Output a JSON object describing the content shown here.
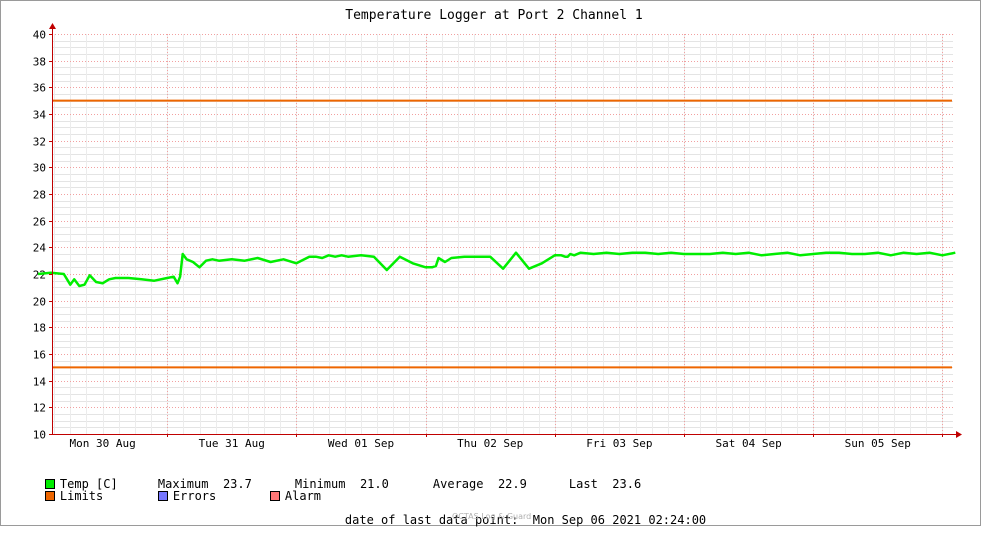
{
  "chart_data": {
    "type": "line",
    "title": "Temperature Logger at Port 2 Channel 1",
    "ylim": [
      10,
      40
    ],
    "yticks": [
      10,
      12,
      14,
      16,
      18,
      20,
      22,
      24,
      26,
      28,
      30,
      32,
      34,
      36,
      38,
      40
    ],
    "grid": true,
    "x_day_labels": [
      "Mon 30 Aug",
      "Tue 31 Aug",
      "Wed 01 Sep",
      "Thu 02 Sep",
      "Fri 03 Sep",
      "Sat 04 Sep",
      "Sun 05 Sep"
    ],
    "series": [
      {
        "name": "Temp [C]",
        "color": "#00ee00",
        "x_day_offset": [
          0,
          0.1,
          0.2,
          0.25,
          0.28,
          0.32,
          0.36,
          0.4,
          0.45,
          0.5,
          0.55,
          0.6,
          0.7,
          0.8,
          0.9,
          1.0,
          1.05,
          1.08,
          1.1,
          1.12,
          1.15,
          1.2,
          1.25,
          1.3,
          1.35,
          1.4,
          1.5,
          1.6,
          1.7,
          1.8,
          1.9,
          2.0,
          2.1,
          2.15,
          2.2,
          2.25,
          2.3,
          2.35,
          2.4,
          2.5,
          2.6,
          2.7,
          2.8,
          2.9,
          3.0,
          3.05,
          3.08,
          3.1,
          3.15,
          3.2,
          3.3,
          3.35,
          3.4,
          3.5,
          3.6,
          3.7,
          3.8,
          3.9,
          4.0,
          4.05,
          4.08,
          4.1,
          4.12,
          4.15,
          4.2,
          4.3,
          4.4,
          4.5,
          4.6,
          4.7,
          4.8,
          4.9,
          5.0,
          5.1,
          5.2,
          5.3,
          5.4,
          5.5,
          5.6,
          5.7,
          5.8,
          5.9,
          6.0,
          6.1,
          6.2,
          6.3,
          6.4,
          6.5,
          6.6,
          6.7,
          6.8,
          6.9,
          7.0,
          7.1
        ],
        "values": [
          22.0,
          22.1,
          22.0,
          21.2,
          21.6,
          21.1,
          21.2,
          21.9,
          21.4,
          21.3,
          21.6,
          21.7,
          21.7,
          21.6,
          21.5,
          21.7,
          21.8,
          21.3,
          21.8,
          23.5,
          23.1,
          22.9,
          22.5,
          23.0,
          23.1,
          23.0,
          23.1,
          23.0,
          23.2,
          22.9,
          23.1,
          22.8,
          23.3,
          23.3,
          23.2,
          23.4,
          23.3,
          23.4,
          23.3,
          23.4,
          23.3,
          22.3,
          23.3,
          22.8,
          22.5,
          22.5,
          22.6,
          23.2,
          22.9,
          23.2,
          23.3,
          23.3,
          23.3,
          23.3,
          22.4,
          23.6,
          22.4,
          22.8,
          23.4,
          23.4,
          23.3,
          23.3,
          23.5,
          23.4,
          23.6,
          23.5,
          23.6,
          23.5,
          23.6,
          23.6,
          23.5,
          23.6,
          23.5,
          23.5,
          23.5,
          23.6,
          23.5,
          23.6,
          23.4,
          23.5,
          23.6,
          23.4,
          23.5,
          23.6,
          23.6,
          23.5,
          23.5,
          23.6,
          23.4,
          23.6,
          23.5,
          23.6,
          23.4,
          23.6
        ]
      },
      {
        "name": "Limits",
        "color": "#ee6600",
        "upper": 35,
        "lower": 15
      }
    ]
  },
  "legend": {
    "temp_label": "Temp [C]",
    "maximum_label": "Maximum",
    "maximum_value": "23.7",
    "minimum_label": "Minimum",
    "minimum_value": "21.0",
    "average_label": "Average",
    "average_value": "22.9",
    "last_label": "Last",
    "last_value": "23.6",
    "limits_label": "Limits",
    "errors_label": "Errors",
    "alarm_label": "Alarm",
    "temp_color": "#00ee00",
    "limits_color": "#ee6600",
    "errors_color": "#7777ff",
    "alarm_color": "#ff7777"
  },
  "footer": {
    "last_point_label": "date of last data point:",
    "last_point_value": "Mon Sep 06 2021 02:24:00",
    "watermark": "OCTAS Log & Guard"
  }
}
